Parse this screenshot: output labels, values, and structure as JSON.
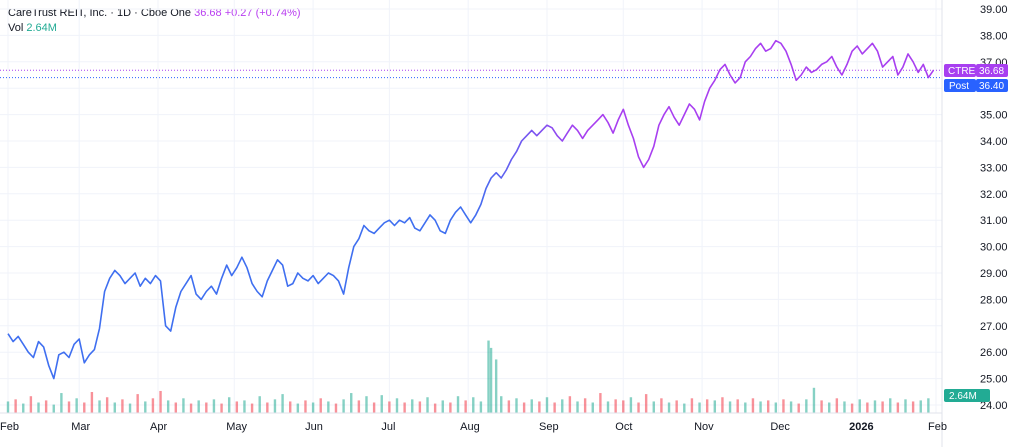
{
  "header": {
    "symbol_name": "CareTrust REIT, Inc.",
    "interval": "1D",
    "exchange": "Cboe One",
    "price": "36.68",
    "change": "+0.27 (+0.74%)",
    "vol_label": "Vol",
    "vol_value": "2.64M",
    "sep": "·"
  },
  "badges": {
    "ticker": "CTRE",
    "last_price": "36.68",
    "post_label": "Post",
    "post_price": "36.40",
    "volume": "2.64M"
  },
  "colors": {
    "line_early": "#3f6ff0",
    "line_late": "#a83ff0",
    "vol_up": "#22ab94",
    "vol_down": "#f23645",
    "grid": "#f0f3fa",
    "ticker_badge": "#a83ff0",
    "post_badge": "#2962ff",
    "vol_badge": "#22ab94"
  },
  "chart_data": {
    "type": "line",
    "series_name": "CTRE",
    "y_ticks": [
      "39.00",
      "38.00",
      "37.00",
      "36.00",
      "35.00",
      "34.00",
      "33.00",
      "32.00",
      "31.00",
      "30.00",
      "29.00",
      "28.00",
      "27.00",
      "26.00",
      "25.00",
      "24.00"
    ],
    "x_ticks": [
      {
        "label": "Feb",
        "d": 0
      },
      {
        "label": "Mar",
        "d": 28
      },
      {
        "label": "Apr",
        "d": 59
      },
      {
        "label": "May",
        "d": 89
      },
      {
        "label": "Jun",
        "d": 120
      },
      {
        "label": "Jul",
        "d": 150
      },
      {
        "label": "Aug",
        "d": 181
      },
      {
        "label": "Sep",
        "d": 212
      },
      {
        "label": "Oct",
        "d": 242
      },
      {
        "label": "Nov",
        "d": 273
      },
      {
        "label": "Dec",
        "d": 303
      },
      {
        "label": "2026",
        "d": 334
      },
      {
        "label": "Feb",
        "d": 365
      }
    ],
    "ylim": [
      24,
      39
    ],
    "price_points": [
      [
        0,
        26.7
      ],
      [
        2,
        26.4
      ],
      [
        4,
        26.6
      ],
      [
        6,
        26.3
      ],
      [
        8,
        26.0
      ],
      [
        10,
        25.8
      ],
      [
        12,
        26.4
      ],
      [
        14,
        26.2
      ],
      [
        16,
        25.5
      ],
      [
        18,
        25.0
      ],
      [
        20,
        25.9
      ],
      [
        22,
        26.0
      ],
      [
        24,
        25.8
      ],
      [
        26,
        26.3
      ],
      [
        28,
        26.5
      ],
      [
        30,
        25.6
      ],
      [
        32,
        25.9
      ],
      [
        34,
        26.1
      ],
      [
        36,
        26.9
      ],
      [
        38,
        28.3
      ],
      [
        40,
        28.8
      ],
      [
        42,
        29.1
      ],
      [
        44,
        28.9
      ],
      [
        46,
        28.6
      ],
      [
        48,
        28.8
      ],
      [
        50,
        29.0
      ],
      [
        52,
        28.5
      ],
      [
        54,
        28.8
      ],
      [
        56,
        28.6
      ],
      [
        58,
        28.9
      ],
      [
        60,
        28.7
      ],
      [
        62,
        27.0
      ],
      [
        64,
        26.8
      ],
      [
        66,
        27.7
      ],
      [
        68,
        28.3
      ],
      [
        70,
        28.6
      ],
      [
        72,
        28.9
      ],
      [
        74,
        28.2
      ],
      [
        76,
        28.0
      ],
      [
        78,
        28.3
      ],
      [
        80,
        28.5
      ],
      [
        82,
        28.2
      ],
      [
        84,
        28.8
      ],
      [
        86,
        29.3
      ],
      [
        88,
        28.9
      ],
      [
        90,
        29.2
      ],
      [
        92,
        29.6
      ],
      [
        94,
        29.2
      ],
      [
        96,
        28.6
      ],
      [
        98,
        28.3
      ],
      [
        100,
        28.1
      ],
      [
        102,
        28.7
      ],
      [
        104,
        29.1
      ],
      [
        106,
        29.5
      ],
      [
        108,
        29.3
      ],
      [
        110,
        28.5
      ],
      [
        112,
        28.6
      ],
      [
        114,
        29.0
      ],
      [
        116,
        28.8
      ],
      [
        118,
        28.7
      ],
      [
        120,
        28.9
      ],
      [
        122,
        28.6
      ],
      [
        124,
        28.8
      ],
      [
        126,
        29.0
      ],
      [
        128,
        28.9
      ],
      [
        130,
        28.7
      ],
      [
        132,
        28.2
      ],
      [
        134,
        29.2
      ],
      [
        136,
        30.0
      ],
      [
        138,
        30.3
      ],
      [
        140,
        30.8
      ],
      [
        142,
        30.6
      ],
      [
        144,
        30.5
      ],
      [
        146,
        30.7
      ],
      [
        148,
        30.9
      ],
      [
        150,
        31.0
      ],
      [
        152,
        30.8
      ],
      [
        154,
        31.0
      ],
      [
        156,
        30.9
      ],
      [
        158,
        31.1
      ],
      [
        160,
        30.7
      ],
      [
        162,
        30.6
      ],
      [
        164,
        30.9
      ],
      [
        166,
        31.2
      ],
      [
        168,
        31.0
      ],
      [
        170,
        30.6
      ],
      [
        172,
        30.5
      ],
      [
        174,
        31.0
      ],
      [
        176,
        31.3
      ],
      [
        178,
        31.5
      ],
      [
        180,
        31.2
      ],
      [
        182,
        30.9
      ],
      [
        184,
        31.2
      ],
      [
        186,
        31.6
      ],
      [
        188,
        32.2
      ],
      [
        190,
        32.6
      ],
      [
        192,
        32.8
      ],
      [
        194,
        32.6
      ],
      [
        196,
        32.9
      ],
      [
        198,
        33.3
      ],
      [
        200,
        33.6
      ],
      [
        202,
        34.0
      ],
      [
        204,
        34.2
      ],
      [
        206,
        34.4
      ],
      [
        208,
        34.2
      ],
      [
        210,
        34.4
      ],
      [
        212,
        34.6
      ],
      [
        214,
        34.5
      ],
      [
        216,
        34.2
      ],
      [
        218,
        34.0
      ],
      [
        220,
        34.3
      ],
      [
        222,
        34.6
      ],
      [
        224,
        34.4
      ],
      [
        226,
        34.1
      ],
      [
        228,
        34.4
      ],
      [
        230,
        34.6
      ],
      [
        232,
        34.8
      ],
      [
        234,
        35.0
      ],
      [
        236,
        34.7
      ],
      [
        238,
        34.3
      ],
      [
        240,
        34.8
      ],
      [
        242,
        35.2
      ],
      [
        244,
        34.6
      ],
      [
        246,
        34.1
      ],
      [
        248,
        33.4
      ],
      [
        250,
        33.0
      ],
      [
        252,
        33.3
      ],
      [
        254,
        33.8
      ],
      [
        256,
        34.6
      ],
      [
        258,
        35.0
      ],
      [
        260,
        35.3
      ],
      [
        262,
        34.9
      ],
      [
        264,
        34.6
      ],
      [
        266,
        35.0
      ],
      [
        268,
        35.4
      ],
      [
        270,
        35.2
      ],
      [
        272,
        34.8
      ],
      [
        274,
        35.5
      ],
      [
        276,
        36.0
      ],
      [
        278,
        36.3
      ],
      [
        280,
        36.7
      ],
      [
        282,
        36.9
      ],
      [
        284,
        36.5
      ],
      [
        286,
        36.2
      ],
      [
        288,
        36.4
      ],
      [
        290,
        37.0
      ],
      [
        292,
        37.2
      ],
      [
        294,
        37.5
      ],
      [
        296,
        37.7
      ],
      [
        298,
        37.4
      ],
      [
        300,
        37.5
      ],
      [
        302,
        37.8
      ],
      [
        304,
        37.7
      ],
      [
        306,
        37.4
      ],
      [
        308,
        36.9
      ],
      [
        310,
        36.3
      ],
      [
        312,
        36.5
      ],
      [
        314,
        36.8
      ],
      [
        316,
        36.6
      ],
      [
        318,
        36.7
      ],
      [
        320,
        36.9
      ],
      [
        322,
        37.0
      ],
      [
        324,
        37.2
      ],
      [
        326,
        36.8
      ],
      [
        328,
        36.5
      ],
      [
        330,
        36.9
      ],
      [
        332,
        37.4
      ],
      [
        334,
        37.6
      ],
      [
        336,
        37.3
      ],
      [
        338,
        37.5
      ],
      [
        340,
        37.7
      ],
      [
        342,
        37.4
      ],
      [
        344,
        36.8
      ],
      [
        346,
        37.0
      ],
      [
        348,
        37.2
      ],
      [
        350,
        36.5
      ],
      [
        352,
        36.8
      ],
      [
        354,
        37.3
      ],
      [
        356,
        37.0
      ],
      [
        358,
        36.6
      ],
      [
        360,
        36.9
      ],
      [
        362,
        36.4
      ],
      [
        364,
        36.68
      ]
    ],
    "volume_points": [
      [
        0,
        1.1,
        1
      ],
      [
        3,
        1.3,
        0
      ],
      [
        6,
        0.9,
        1
      ],
      [
        9,
        1.6,
        0
      ],
      [
        12,
        1.0,
        1
      ],
      [
        15,
        1.2,
        0
      ],
      [
        18,
        0.8,
        1
      ],
      [
        21,
        1.9,
        1
      ],
      [
        24,
        1.1,
        0
      ],
      [
        27,
        1.4,
        1
      ],
      [
        30,
        1.0,
        0
      ],
      [
        33,
        2.0,
        0
      ],
      [
        36,
        1.2,
        1
      ],
      [
        39,
        1.5,
        0
      ],
      [
        42,
        1.0,
        1
      ],
      [
        45,
        1.3,
        0
      ],
      [
        48,
        0.9,
        1
      ],
      [
        51,
        1.8,
        0
      ],
      [
        54,
        1.1,
        1
      ],
      [
        57,
        1.4,
        0
      ],
      [
        60,
        2.1,
        0
      ],
      [
        63,
        1.2,
        1
      ],
      [
        66,
        1.0,
        0
      ],
      [
        69,
        1.4,
        1
      ],
      [
        72,
        0.9,
        0
      ],
      [
        75,
        1.2,
        1
      ],
      [
        78,
        1.0,
        0
      ],
      [
        81,
        1.3,
        1
      ],
      [
        84,
        0.9,
        0
      ],
      [
        87,
        1.5,
        1
      ],
      [
        90,
        1.1,
        0
      ],
      [
        93,
        1.2,
        1
      ],
      [
        96,
        0.9,
        0
      ],
      [
        99,
        1.6,
        1
      ],
      [
        102,
        1.0,
        0
      ],
      [
        105,
        1.3,
        1
      ],
      [
        108,
        1.8,
        1
      ],
      [
        111,
        1.1,
        0
      ],
      [
        114,
        0.9,
        1
      ],
      [
        117,
        1.2,
        0
      ],
      [
        120,
        1.0,
        1
      ],
      [
        123,
        1.4,
        0
      ],
      [
        126,
        1.1,
        1
      ],
      [
        129,
        0.9,
        0
      ],
      [
        132,
        1.3,
        1
      ],
      [
        135,
        1.9,
        1
      ],
      [
        138,
        1.2,
        0
      ],
      [
        141,
        1.6,
        1
      ],
      [
        144,
        1.0,
        0
      ],
      [
        147,
        1.7,
        1
      ],
      [
        150,
        1.1,
        0
      ],
      [
        153,
        1.4,
        1
      ],
      [
        156,
        1.0,
        0
      ],
      [
        159,
        1.3,
        1
      ],
      [
        162,
        1.1,
        0
      ],
      [
        165,
        1.5,
        1
      ],
      [
        168,
        0.9,
        0
      ],
      [
        171,
        1.2,
        1
      ],
      [
        174,
        1.0,
        0
      ],
      [
        177,
        1.6,
        1
      ],
      [
        180,
        1.2,
        0
      ],
      [
        183,
        1.5,
        1
      ],
      [
        186,
        1.1,
        1
      ],
      [
        189,
        6.9,
        1
      ],
      [
        190,
        6.2,
        1
      ],
      [
        192,
        5.1,
        1
      ],
      [
        194,
        1.6,
        1
      ],
      [
        197,
        1.2,
        0
      ],
      [
        200,
        1.4,
        1
      ],
      [
        203,
        1.0,
        0
      ],
      [
        206,
        1.3,
        1
      ],
      [
        209,
        1.1,
        0
      ],
      [
        212,
        1.5,
        1
      ],
      [
        215,
        1.0,
        0
      ],
      [
        218,
        1.3,
        1
      ],
      [
        221,
        1.6,
        0
      ],
      [
        224,
        1.1,
        1
      ],
      [
        227,
        1.4,
        0
      ],
      [
        230,
        1.0,
        1
      ],
      [
        233,
        1.9,
        0
      ],
      [
        236,
        1.1,
        1
      ],
      [
        239,
        1.3,
        0
      ],
      [
        242,
        1.2,
        0
      ],
      [
        245,
        1.5,
        1
      ],
      [
        248,
        1.0,
        0
      ],
      [
        251,
        1.8,
        0
      ],
      [
        254,
        1.1,
        1
      ],
      [
        257,
        1.4,
        0
      ],
      [
        260,
        1.0,
        1
      ],
      [
        263,
        1.2,
        0
      ],
      [
        266,
        0.9,
        1
      ],
      [
        269,
        1.4,
        0
      ],
      [
        272,
        1.0,
        1
      ],
      [
        275,
        1.3,
        0
      ],
      [
        278,
        1.2,
        1
      ],
      [
        281,
        1.5,
        0
      ],
      [
        284,
        1.1,
        1
      ],
      [
        287,
        1.3,
        0
      ],
      [
        290,
        1.0,
        1
      ],
      [
        293,
        1.4,
        0
      ],
      [
        296,
        1.1,
        1
      ],
      [
        299,
        1.2,
        0
      ],
      [
        302,
        1.0,
        1
      ],
      [
        305,
        1.3,
        0
      ],
      [
        308,
        1.1,
        1
      ],
      [
        311,
        0.9,
        0
      ],
      [
        314,
        1.3,
        1
      ],
      [
        317,
        2.4,
        1
      ],
      [
        320,
        1.2,
        0
      ],
      [
        323,
        1.0,
        1
      ],
      [
        326,
        1.4,
        0
      ],
      [
        329,
        1.1,
        1
      ],
      [
        332,
        0.9,
        0
      ],
      [
        335,
        1.3,
        1
      ],
      [
        338,
        1.0,
        0
      ],
      [
        341,
        1.2,
        1
      ],
      [
        344,
        1.1,
        0
      ],
      [
        347,
        1.4,
        1
      ],
      [
        350,
        1.0,
        0
      ],
      [
        353,
        1.3,
        1
      ],
      [
        356,
        1.1,
        0
      ],
      [
        359,
        1.2,
        1
      ],
      [
        362,
        1.4,
        1
      ]
    ]
  }
}
